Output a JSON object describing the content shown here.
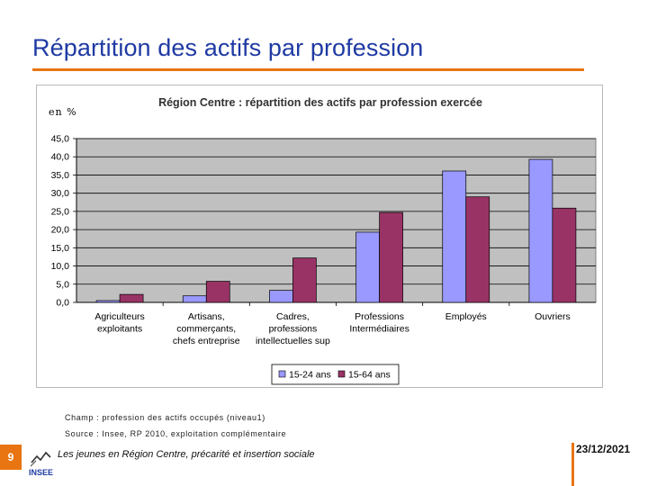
{
  "slide": {
    "title": "Répartition des actifs par profession",
    "unit_label": "en %",
    "note_scope": "Champ : profession des actifs occupés (niveau1)",
    "note_source": "Source : Insee, RP 2010, exploitation complémentaire",
    "footer_text": "Les jeunes en Région Centre, précarité et insertion sociale",
    "page_number": "9",
    "date": "23/12/2021",
    "logo_text": "INSEE"
  },
  "colors": {
    "title": "#1f3aa3",
    "accent": "#e87511",
    "plot_bg": "#c0c0c0",
    "series_1": "#9999ff",
    "series_2": "#993366"
  },
  "chart_data": {
    "type": "bar",
    "title": "Région Centre : répartition des actifs par profession exercée",
    "xlabel": "",
    "ylabel": "en %",
    "ylim": [
      0,
      45
    ],
    "yticks": [
      0,
      5,
      10,
      15,
      20,
      25,
      30,
      35,
      40,
      45
    ],
    "ytick_labels": [
      "0,0",
      "5,0",
      "10,0",
      "15,0",
      "20,0",
      "25,0",
      "30,0",
      "35,0",
      "40,0",
      "45,0"
    ],
    "grid": true,
    "legend_position": "bottom",
    "categories": [
      [
        "Agriculteurs",
        "exploitants"
      ],
      [
        "Artisans,",
        "commerçants,",
        "chefs entreprise"
      ],
      [
        "Cadres,",
        "professions",
        "intellectuelles sup"
      ],
      [
        "Professions",
        "Intermédiaires"
      ],
      [
        "Employés"
      ],
      [
        "Ouvriers"
      ]
    ],
    "series": [
      {
        "name": "15-24 ans",
        "color": "#9999ff",
        "values": [
          0.5,
          1.8,
          3.3,
          19.3,
          36.1,
          39.3
        ]
      },
      {
        "name": "15-64 ans",
        "color": "#993366",
        "values": [
          2.2,
          5.8,
          12.2,
          24.7,
          29.0,
          25.9
        ]
      }
    ]
  }
}
